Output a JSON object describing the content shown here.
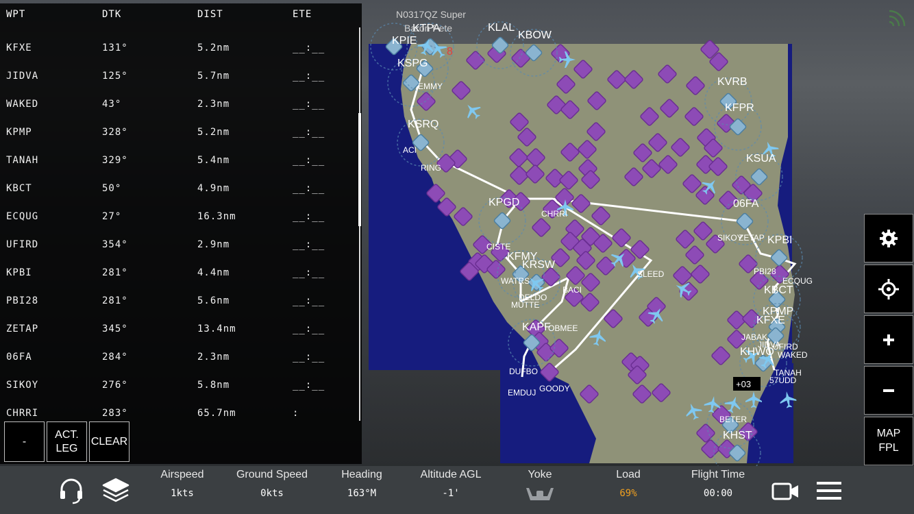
{
  "flight_plan": {
    "headers": {
      "wpt": "WPT",
      "dtk": "DTK",
      "dist": "DIST",
      "ete": "ETE"
    },
    "rows": [
      {
        "wpt": "KFXE",
        "dtk": "131°",
        "dist": "5.2nm",
        "ete": "__:__"
      },
      {
        "wpt": "JIDVA",
        "dtk": "125°",
        "dist": "5.7nm",
        "ete": "__:__"
      },
      {
        "wpt": "WAKED",
        "dtk": "43°",
        "dist": "2.3nm",
        "ete": "__:__"
      },
      {
        "wpt": "KPMP",
        "dtk": "328°",
        "dist": "5.2nm",
        "ete": "__:__"
      },
      {
        "wpt": "TANAH",
        "dtk": "329°",
        "dist": "5.4nm",
        "ete": "__:__"
      },
      {
        "wpt": "KBCT",
        "dtk": "50°",
        "dist": "4.9nm",
        "ete": "__:__"
      },
      {
        "wpt": "ECQUG",
        "dtk": "27°",
        "dist": "16.3nm",
        "ete": "__:__"
      },
      {
        "wpt": "UFIRD",
        "dtk": "354°",
        "dist": "2.9nm",
        "ete": "__:__"
      },
      {
        "wpt": "KPBI",
        "dtk": "281°",
        "dist": "4.4nm",
        "ete": "__:__"
      },
      {
        "wpt": "PBI28",
        "dtk": "281°",
        "dist": "5.6nm",
        "ete": "__:__"
      },
      {
        "wpt": "ZETAP",
        "dtk": "345°",
        "dist": "13.4nm",
        "ete": "__:__"
      },
      {
        "wpt": "06FA",
        "dtk": "284°",
        "dist": "2.3nm",
        "ete": "__:__"
      },
      {
        "wpt": "SIKOY",
        "dtk": "276°",
        "dist": "5.8nm",
        "ete": "__:__"
      },
      {
        "wpt": "CHRRI",
        "dtk": "283°",
        "dist": "65.7nm",
        "ete": ":"
      }
    ],
    "buttons": {
      "minus": "-",
      "act_leg": "ACT. LEG",
      "clear": "CLEAR"
    }
  },
  "map": {
    "airports": [
      {
        "id": "KPIE"
      },
      {
        "id": "KTPA"
      },
      {
        "id": "KLAL"
      },
      {
        "id": "KBOW"
      },
      {
        "id": "KSPG"
      },
      {
        "id": "KSRQ"
      },
      {
        "id": "KVRB"
      },
      {
        "id": "KFPR"
      },
      {
        "id": "KSUA"
      },
      {
        "id": "06FA"
      },
      {
        "id": "KPGD"
      },
      {
        "id": "KPBI"
      },
      {
        "id": "KFMY"
      },
      {
        "id": "KRSW"
      },
      {
        "id": "KBCT"
      },
      {
        "id": "KPMP"
      },
      {
        "id": "KFXE"
      },
      {
        "id": "KAPF"
      },
      {
        "id": "KHWO"
      },
      {
        "id": "KHST"
      }
    ],
    "waypoints": [
      "RING",
      "CHRRI",
      "SIKOY",
      "ZETAP",
      "GOODY",
      "EMDUJ",
      "DUFBO",
      "CISTE",
      "ACI",
      "EMMY",
      "SLEED",
      "ECQUG",
      "BACI",
      "OBMEE",
      "DELDO",
      "MUTTE",
      "WATRS",
      "BETER",
      "JIDVA",
      "WAKED",
      "TANAH",
      "UFIRD",
      "PBI28",
      "57UDD",
      "JABAK"
    ],
    "traffic_callsign": "N0317QZ Super",
    "traffic_sub": "Baron Pete",
    "traffic_alt": "+03",
    "red_number": "8"
  },
  "right_buttons": {
    "map_fpl": [
      "MAP",
      "FPL"
    ]
  },
  "icons": {
    "settings": "gear-icon",
    "center": "crosshair-icon",
    "zoom_in": "plus-icon",
    "zoom_out": "minus-icon",
    "atc": "headset-icon",
    "layers": "layers-icon",
    "camera": "camera-icon",
    "menu": "hamburger-icon",
    "signal": "signal-icon",
    "yoke": "yoke-icon"
  },
  "bottom_bar": {
    "airspeed": {
      "label": "Airspeed",
      "value": "1kts"
    },
    "ground_speed": {
      "label": "Ground Speed",
      "value": "0kts"
    },
    "heading": {
      "label": "Heading",
      "value": "163°M"
    },
    "altitude": {
      "label": "Altitude AGL",
      "value": "-1'"
    },
    "yoke": {
      "label": "Yoke"
    },
    "load": {
      "label": "Load",
      "value": "69%"
    },
    "flight_time": {
      "label": "Flight Time",
      "value": "00:00"
    }
  },
  "colors": {
    "water": "#141a7a",
    "land": "#8c8f78",
    "waypoint": "#8d4bb6",
    "airport": "#8ab4d0",
    "aircraft": "#7fc8f0",
    "route": "#ffffff",
    "load_warn": "#f0a020"
  }
}
